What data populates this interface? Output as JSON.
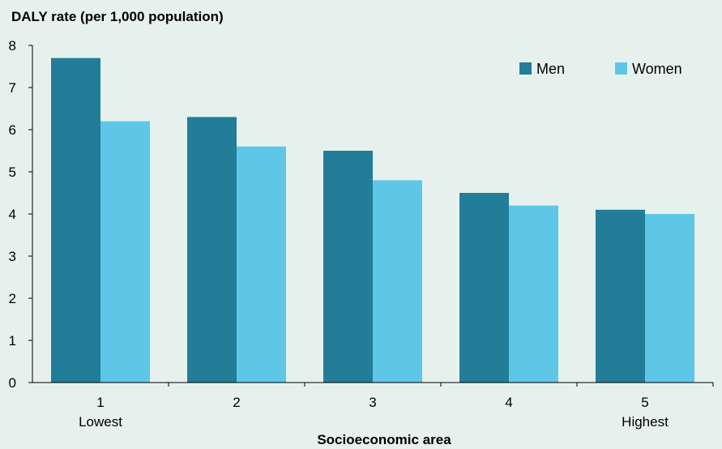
{
  "chart_data": {
    "type": "bar",
    "title": "",
    "ylabel": "DALY rate (per 1,000 population)",
    "xlabel": "Socioeconomic area",
    "categories": [
      "1",
      "2",
      "3",
      "4",
      "5"
    ],
    "category_sublabels": [
      "Lowest",
      "",
      "",
      "",
      "Highest"
    ],
    "ylim": [
      0,
      8
    ],
    "yticks": [
      0,
      1,
      2,
      3,
      4,
      5,
      6,
      7,
      8
    ],
    "grid": false,
    "legend_position": "top-right",
    "series": [
      {
        "name": "Men",
        "color": "#227e98",
        "values": [
          7.7,
          6.3,
          5.5,
          4.5,
          4.1
        ]
      },
      {
        "name": "Women",
        "color": "#5ec7e8",
        "values": [
          6.2,
          5.6,
          4.8,
          4.2,
          4.0
        ]
      }
    ]
  }
}
